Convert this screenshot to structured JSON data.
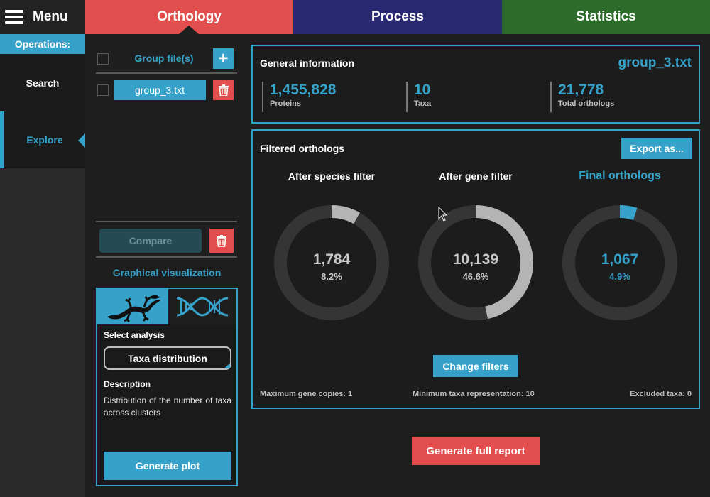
{
  "topbar": {
    "menu_label": "Menu",
    "tabs": [
      {
        "label": "Orthology",
        "color": "#e24d4d",
        "active": true
      },
      {
        "label": "Process",
        "color": "#292972",
        "active": false
      },
      {
        "label": "Statistics",
        "color": "#2d6b2a",
        "active": false
      }
    ]
  },
  "sidebar": {
    "header": "Operations:",
    "items": [
      {
        "label": "Search",
        "active": false
      },
      {
        "label": "Explore",
        "active": true
      }
    ]
  },
  "groups": {
    "header_label": "Group file(s)",
    "add_icon": "plus-icon",
    "files": [
      {
        "name": "group_3.txt",
        "checked": false
      }
    ],
    "compare_label": "Compare"
  },
  "graphical": {
    "title": "Graphical visualization",
    "icon_tabs": [
      "lizard-icon",
      "dna-icon"
    ],
    "select_label": "Select analysis",
    "selected_analysis": "Taxa distribution",
    "description_label": "Description",
    "description": "Distribution of the number of taxa across clusters",
    "generate_label": "Generate plot"
  },
  "general_info": {
    "title": "General information",
    "file": "group_3.txt",
    "stats": [
      {
        "value": "1,455,828",
        "label": "Proteins"
      },
      {
        "value": "10",
        "label": "Taxa"
      },
      {
        "value": "21,778",
        "label": "Total orthologs"
      }
    ]
  },
  "filtered": {
    "title": "Filtered orthologs",
    "export_label": "Export as...",
    "donuts": [
      {
        "title": "After species filter",
        "count": "1,784",
        "percent": "8.2%",
        "fraction": 0.082,
        "accent": false
      },
      {
        "title": "After gene filter",
        "count": "10,139",
        "percent": "46.6%",
        "fraction": 0.466,
        "accent": false
      },
      {
        "title": "Final orthologs",
        "count": "1,067",
        "percent": "4.9%",
        "fraction": 0.049,
        "accent": true
      }
    ],
    "change_label": "Change filters",
    "footnotes": {
      "max_copies": "Maximum gene copies: 1",
      "min_taxa": "Minimum taxa representation: 10",
      "excluded": "Excluded taxa: 0"
    }
  },
  "report_label": "Generate full report",
  "colors": {
    "accent": "#36a2c9",
    "danger": "#e24d4d",
    "ring_track": "#353535",
    "ring_fill": "#b4b4b4"
  }
}
